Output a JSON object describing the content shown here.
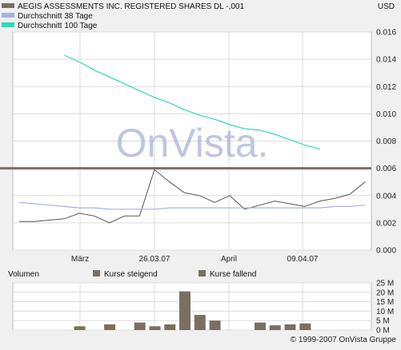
{
  "currency": "USD",
  "copyright": "© 1999-2007 OnVista Gruppe",
  "watermark": "OnVista.",
  "legend": [
    {
      "label": "AEGIS ASSESSMENTS INC. REGISTERED SHARES DL -,001",
      "color": "#7a7060"
    },
    {
      "label": "Durchschnitt 38 Tage",
      "color": "#a8b0e0"
    },
    {
      "label": "Durchschnitt 100 Tage",
      "color": "#33d6b8"
    }
  ],
  "volume_legend": {
    "title": "Volumen",
    "rising": "Kurse steigend",
    "falling": "Kurse fallend"
  },
  "chart_data": [
    {
      "type": "line",
      "x_tick_labels": [
        "März",
        "26.03.07",
        "April",
        "09.04.07"
      ],
      "y_tick_labels": [
        "0.000",
        "0.002",
        "0.004",
        "0.006",
        "0.008",
        "0.010",
        "0.012",
        "0.014",
        "0.016"
      ],
      "ylim": [
        0,
        0.016
      ],
      "grid": true,
      "legend_position": "top-left",
      "reference_line": 0.006,
      "series": [
        {
          "name": "AEGIS ASSESSMENTS INC. REGISTERED SHARES DL -,001",
          "color": "#7a7060",
          "values": [
            0.0021,
            0.0021,
            0.0022,
            0.0023,
            0.0027,
            0.0025,
            0.002,
            0.0025,
            0.0025,
            0.0059,
            0.005,
            0.0042,
            0.004,
            0.0035,
            0.004,
            0.003,
            0.0033,
            0.0036,
            0.0034,
            0.0032,
            0.0036,
            0.0038,
            0.0041,
            0.005
          ]
        },
        {
          "name": "Durchschnitt 38 Tage",
          "color": "#a8b0e0",
          "values": [
            0.0035,
            0.0034,
            0.0033,
            0.0032,
            0.0031,
            0.0031,
            0.003,
            0.003,
            0.003,
            0.003,
            0.0031,
            0.0031,
            0.0031,
            0.0031,
            0.0031,
            0.0031,
            0.0031,
            0.0031,
            0.0031,
            0.0031,
            0.0031,
            0.0032,
            0.0032,
            0.0033
          ]
        },
        {
          "name": "Durchschnitt 100 Tage",
          "color": "#33d6b8",
          "values": [
            null,
            null,
            null,
            0.0143,
            0.0138,
            0.0132,
            0.0127,
            0.0122,
            0.0117,
            0.0112,
            0.0108,
            0.0103,
            0.0099,
            0.0096,
            0.0092,
            0.0089,
            0.0088,
            0.0085,
            0.0081,
            0.0077,
            0.0074,
            null,
            null,
            null
          ]
        }
      ]
    },
    {
      "type": "bar",
      "y_tick_labels": [
        "0 M",
        "5 M",
        "10 M",
        "15 M",
        "20 M",
        "25 M"
      ],
      "ylim": [
        0,
        25
      ],
      "grid": true,
      "values": [
        0,
        0,
        2.0,
        0,
        3.0,
        0,
        4.0,
        2.0,
        3.0,
        20.5,
        8.0,
        5.0,
        0,
        0,
        4.0,
        2.5,
        3.0,
        3.5,
        0,
        0,
        0,
        0,
        2.0,
        2.0
      ]
    }
  ]
}
